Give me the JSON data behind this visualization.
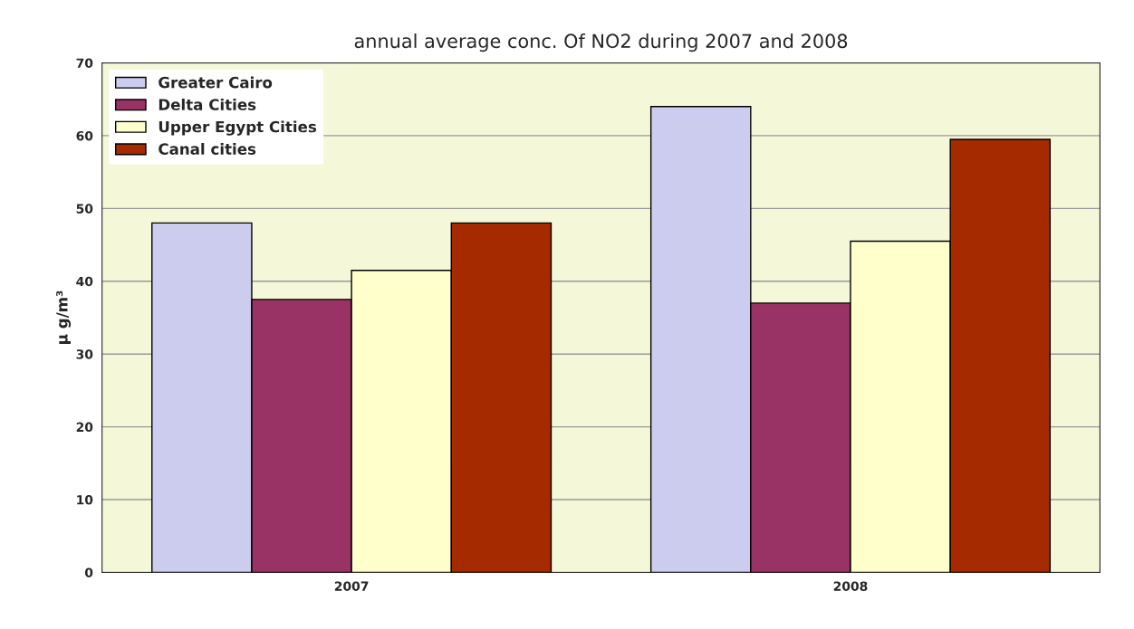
{
  "chart_data": {
    "type": "bar",
    "title": "annual average conc. Of NO2 during 2007 and 2008",
    "ylabel": "µ g/m³",
    "categories": [
      "2007",
      "2008"
    ],
    "series": [
      {
        "name": "Greater Cairo",
        "color": "#ccccee",
        "values": [
          48,
          64
        ]
      },
      {
        "name": "Delta Cities",
        "color": "#993366",
        "values": [
          37.5,
          37
        ]
      },
      {
        "name": "Upper Egypt Cities",
        "color": "#ffffcc",
        "values": [
          41.5,
          45.5
        ]
      },
      {
        "name": "Canal cities",
        "color": "#a52a00",
        "values": [
          48,
          59.5
        ]
      }
    ],
    "ylim": [
      0,
      70
    ],
    "yticks": [
      0,
      10,
      20,
      30,
      40,
      50,
      60,
      70
    ],
    "grid": "y",
    "legend": "top left"
  }
}
